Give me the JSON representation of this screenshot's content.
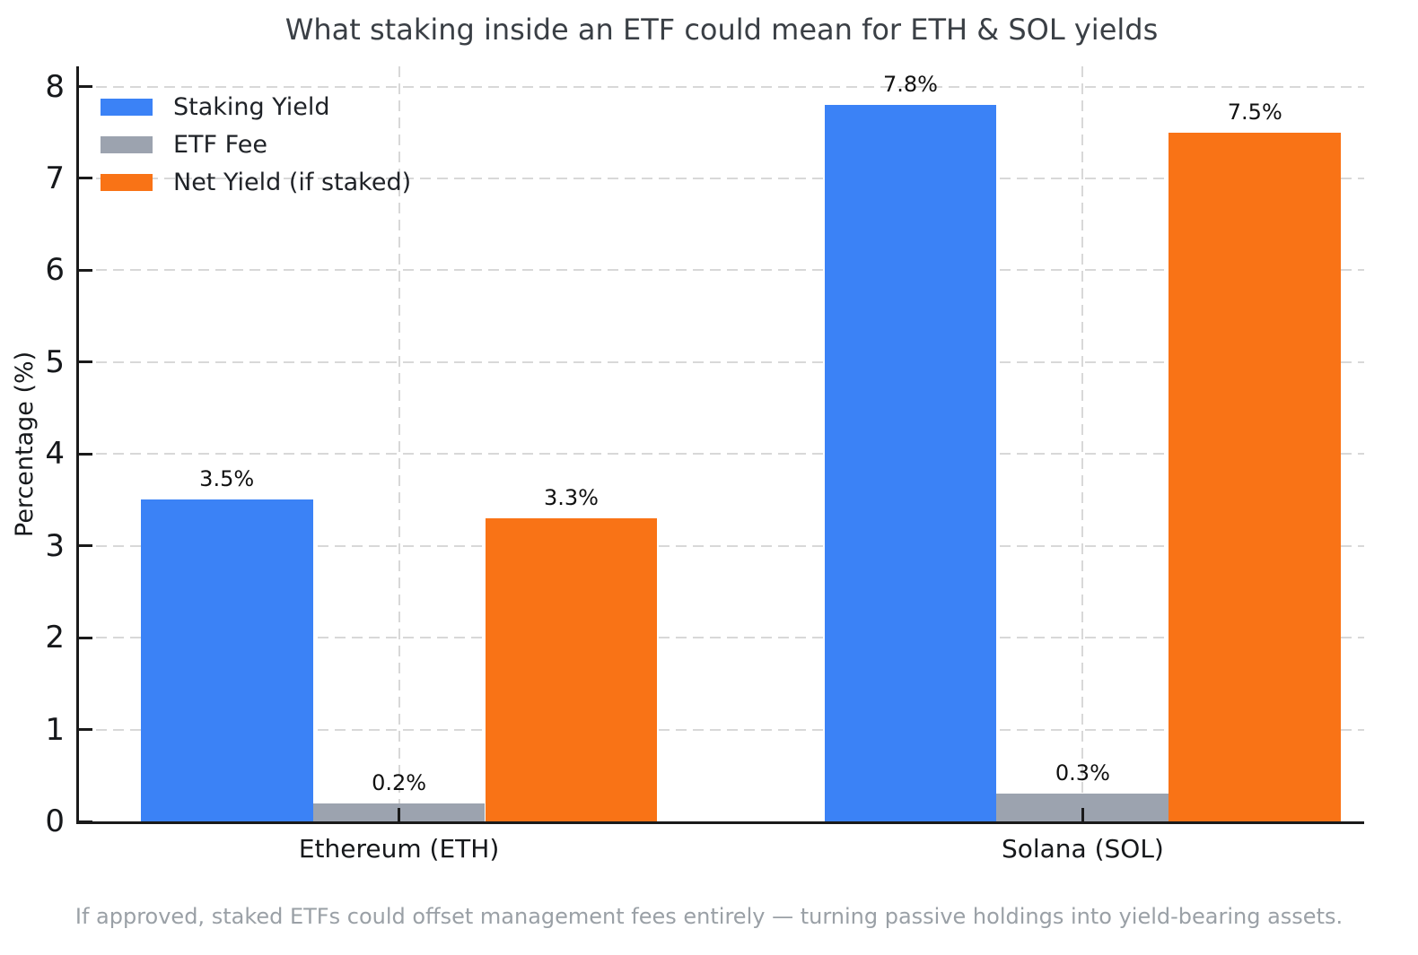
{
  "chart_data": {
    "type": "bar",
    "title": "What staking inside an ETF could mean for ETH & SOL yields",
    "categories": [
      "Ethereum (ETH)",
      "Solana (SOL)"
    ],
    "series": [
      {
        "name": "Staking Yield",
        "color": "#3b82f6",
        "values": [
          3.5,
          7.8
        ],
        "labels": [
          "3.5%",
          "7.8%"
        ]
      },
      {
        "name": "ETF Fee",
        "color": "#9ca3af",
        "values": [
          0.2,
          0.3
        ],
        "labels": [
          "0.2%",
          "0.3%"
        ]
      },
      {
        "name": "Net Yield (if staked)",
        "color": "#f97316",
        "values": [
          3.3,
          7.5
        ],
        "labels": [
          "3.3%",
          "7.5%"
        ]
      }
    ],
    "xlabel": "",
    "ylabel": "Percentage (%)",
    "ylim": [
      0,
      8.22
    ],
    "yticks": [
      0,
      1,
      2,
      3,
      4,
      5,
      6,
      7,
      8
    ],
    "grid": true,
    "grid_style": "dashed",
    "legend_position": "top-left",
    "footnote": "If approved, staked ETFs could offset management fees entirely — turning passive holdings into yield-bearing assets."
  },
  "style": {
    "background": "#ffffff",
    "title_color": "#3a3f45",
    "axis_color": "#1a1a1a",
    "grid_color": "#d8d8d8",
    "tick_label_color": "#16181b",
    "bar_label_color": "#111111",
    "legend_text_color": "#1f2227",
    "footnote_color": "#9aa0a6"
  }
}
